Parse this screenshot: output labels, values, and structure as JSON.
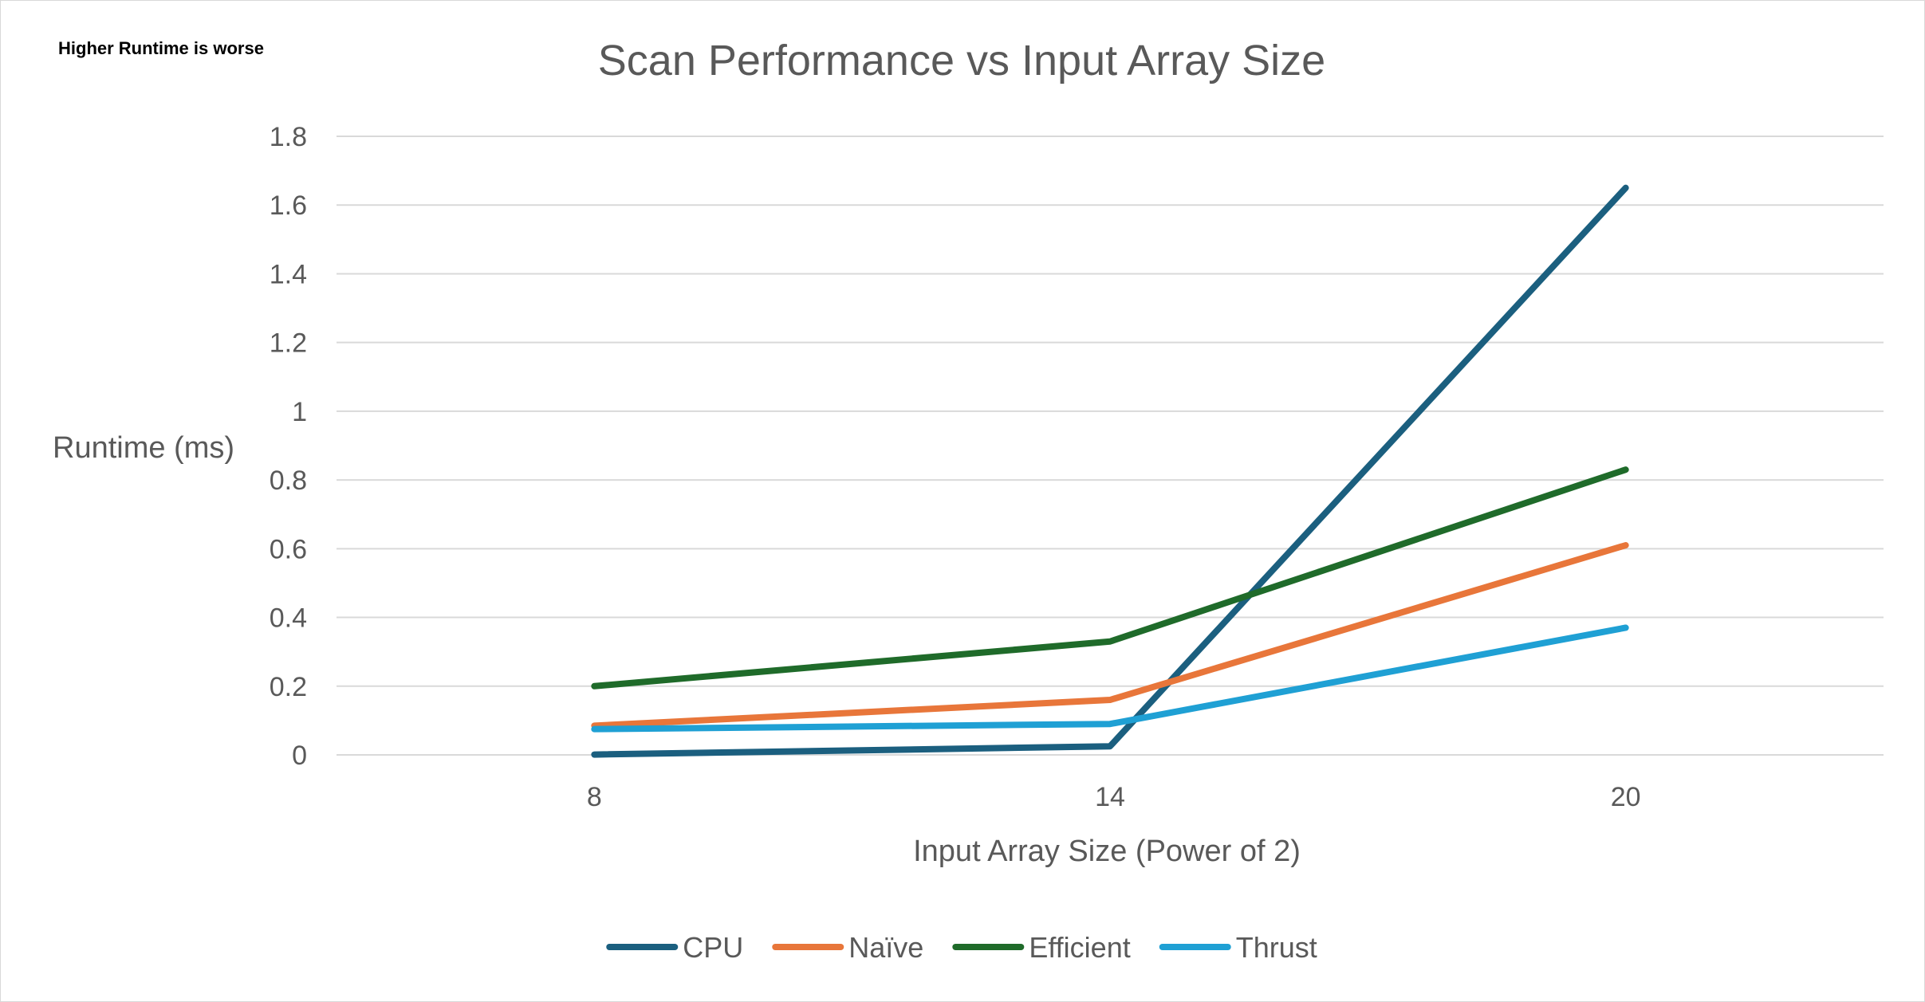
{
  "note": "Higher Runtime is worse",
  "chart_data": {
    "type": "line",
    "title": "Scan Performance vs Input Array Size",
    "xlabel": "Input Array Size (Power of 2)",
    "ylabel": "Runtime (ms)",
    "categories": [
      "8",
      "14",
      "20"
    ],
    "ylim": [
      0,
      1.8
    ],
    "yticks": [
      "0",
      "0.2",
      "0.4",
      "0.6",
      "0.8",
      "1",
      "1.2",
      "1.4",
      "1.6",
      "1.8"
    ],
    "grid": true,
    "legend_position": "bottom",
    "series": [
      {
        "name": "CPU",
        "color": "#1b5f7f",
        "values": [
          0.001,
          0.025,
          1.65
        ]
      },
      {
        "name": "Naïve",
        "color": "#e8763a",
        "values": [
          0.085,
          0.16,
          0.61
        ]
      },
      {
        "name": "Efficient",
        "color": "#1f6b2a",
        "values": [
          0.2,
          0.33,
          0.83
        ]
      },
      {
        "name": "Thrust",
        "color": "#1fa0d4",
        "values": [
          0.075,
          0.09,
          0.37
        ]
      }
    ]
  }
}
